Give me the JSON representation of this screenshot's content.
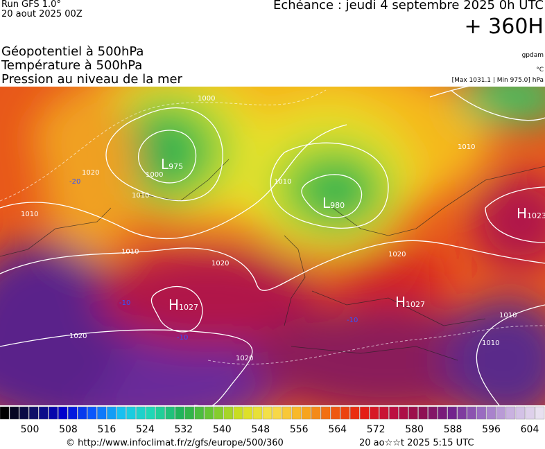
{
  "header": {
    "run": "Run GFS 1.0°",
    "run_date": "20 aout 2025 00Z",
    "valid": "Echéance : jeudi 4 septembre 2025 0h UTC",
    "lead": "+ 360H"
  },
  "fields": [
    "Géopotentiel à 500hPa",
    "Température à 500hPa",
    "Pression au niveau de la mer"
  ],
  "units": {
    "geopotential": "gpdam",
    "temperature": "°C",
    "pressure": "[Max 1031.1 | Min 975.0] hPa"
  },
  "systems": [
    {
      "letter": "L",
      "value": 975
    },
    {
      "letter": "L",
      "value": 980
    },
    {
      "letter": "H",
      "value": 1023
    },
    {
      "letter": "H",
      "value": 1027
    },
    {
      "letter": "H",
      "value": 1027
    }
  ],
  "isobar_labels": [
    1020,
    1010,
    1010,
    1010,
    1000,
    1000,
    1010,
    1020,
    1020,
    1020,
    1020,
    1010,
    1010,
    1010
  ],
  "temperature_labels": [
    -20,
    -10,
    -10,
    -10
  ],
  "scale": {
    "labels": [
      500,
      508,
      516,
      524,
      532,
      540,
      548,
      556,
      564,
      572,
      580,
      588,
      596,
      604
    ]
  },
  "footer": {
    "source": "© http://www.infoclimat.fr/z/gfs/europe/500/360",
    "generated": "20 ao☆☆t 2025  5:15 UTC"
  }
}
